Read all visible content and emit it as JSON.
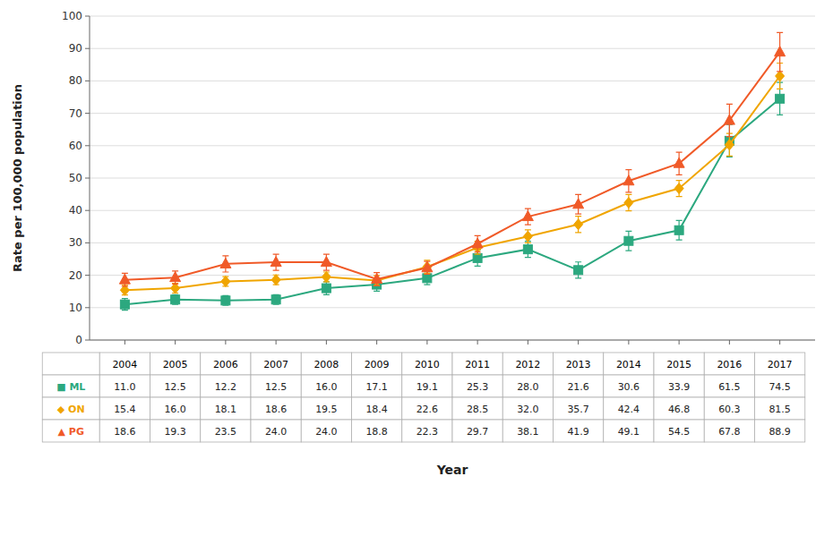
{
  "chart_data": {
    "type": "line",
    "xlabel": "Year",
    "ylabel": "Rate per 100,000 population",
    "x": [
      2004,
      2005,
      2006,
      2007,
      2008,
      2009,
      2010,
      2011,
      2012,
      2013,
      2014,
      2015,
      2016,
      2017
    ],
    "xlim": [
      2003.3,
      2017.7
    ],
    "xticks": [
      2004,
      2005,
      2006,
      2007,
      2008,
      2009,
      2010,
      2011,
      2012,
      2013,
      2014,
      2015,
      2016,
      2017
    ],
    "ylim": [
      0,
      100
    ],
    "yticks": [
      0,
      10,
      20,
      30,
      40,
      50,
      60,
      70,
      80,
      90,
      100
    ],
    "grid": true,
    "tick_labels": "y",
    "series": [
      {
        "name": "■ ML",
        "color": "#2ca87f",
        "marker": "square",
        "values": [
          11.0,
          12.5,
          12.2,
          12.5,
          16.0,
          17.1,
          19.1,
          25.3,
          28.0,
          21.6,
          30.6,
          33.9,
          61.5,
          74.5
        ],
        "errors": [
          1.8,
          1.5,
          1.5,
          1.5,
          2.0,
          2.0,
          2.0,
          2.5,
          2.5,
          2.5,
          3.0,
          3.0,
          5.0,
          5.0
        ],
        "value_labels": [
          "11.0",
          "12.5",
          "12.2",
          "12.5",
          "16.0",
          "17.1",
          "19.1",
          "25.3",
          "28.0",
          "21.6",
          "30.6",
          "33.9",
          "61.5",
          "74.5"
        ]
      },
      {
        "name": "◆ ON",
        "color": "#f0a500",
        "marker": "diamond",
        "values": [
          15.4,
          16.0,
          18.1,
          18.6,
          19.5,
          18.4,
          22.6,
          28.5,
          32.0,
          35.7,
          42.4,
          46.8,
          60.3,
          81.5
        ],
        "errors": [
          1.5,
          1.5,
          1.5,
          1.5,
          1.5,
          1.5,
          2.0,
          2.0,
          2.0,
          2.5,
          2.5,
          2.5,
          3.5,
          4.0
        ],
        "value_labels": [
          "15.4",
          "16.0",
          "18.1",
          "18.6",
          "19.5",
          "18.4",
          "22.6",
          "28.5",
          "32.0",
          "35.7",
          "42.4",
          "46.8",
          "60.3",
          "81.5"
        ]
      },
      {
        "name": "▲ PG",
        "color": "#f05a28",
        "marker": "triangle",
        "values": [
          18.6,
          19.3,
          23.5,
          24.0,
          24.0,
          18.8,
          22.3,
          29.7,
          38.1,
          41.9,
          49.1,
          54.5,
          67.8,
          88.9
        ],
        "errors": [
          2.0,
          2.0,
          2.5,
          2.5,
          2.5,
          2.0,
          2.0,
          2.5,
          2.5,
          3.0,
          3.5,
          3.5,
          5.0,
          6.0
        ],
        "value_labels": [
          "18.6",
          "19.3",
          "23.5",
          "24.0",
          "24.0",
          "18.8",
          "22.3",
          "29.7",
          "38.1",
          "41.9",
          "49.1",
          "54.5",
          "67.8",
          "88.9"
        ]
      }
    ]
  }
}
